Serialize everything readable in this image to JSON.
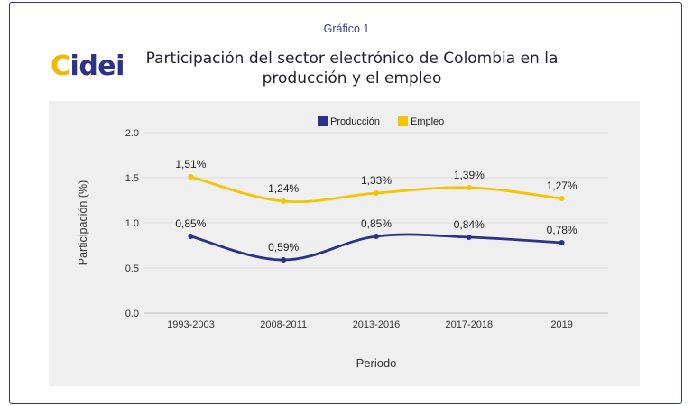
{
  "caption": "Gráfico 1",
  "logo": {
    "text": "Cidei"
  },
  "colors": {
    "produccion": "#2d3188",
    "empleo": "#f5c400",
    "frame": "#2d3188"
  },
  "chart_data": {
    "type": "line",
    "title": "Participación del sector electrónico de Colombia en la producción y el empleo",
    "xlabel": "Periodo",
    "ylabel": "Participación (%)",
    "categories": [
      "1993-2003",
      "2008-2011",
      "2013-2016",
      "2017-2018",
      "2019"
    ],
    "ylim": [
      0,
      2.0
    ],
    "yticks": [
      "0.0",
      "0.5",
      "1.0",
      "1.5",
      "2.0"
    ],
    "grid": true,
    "legend": "top-center",
    "series": [
      {
        "name": "Producción",
        "values": [
          0.85,
          0.59,
          0.85,
          0.84,
          0.78
        ],
        "labels": [
          "0,85%",
          "0,59%",
          "0,85%",
          "0,84%",
          "0,78%"
        ]
      },
      {
        "name": "Empleo",
        "values": [
          1.51,
          1.24,
          1.33,
          1.39,
          1.27
        ],
        "labels": [
          "1,51%",
          "1,24%",
          "1,33%",
          "1,39%",
          "1,27%"
        ]
      }
    ]
  }
}
